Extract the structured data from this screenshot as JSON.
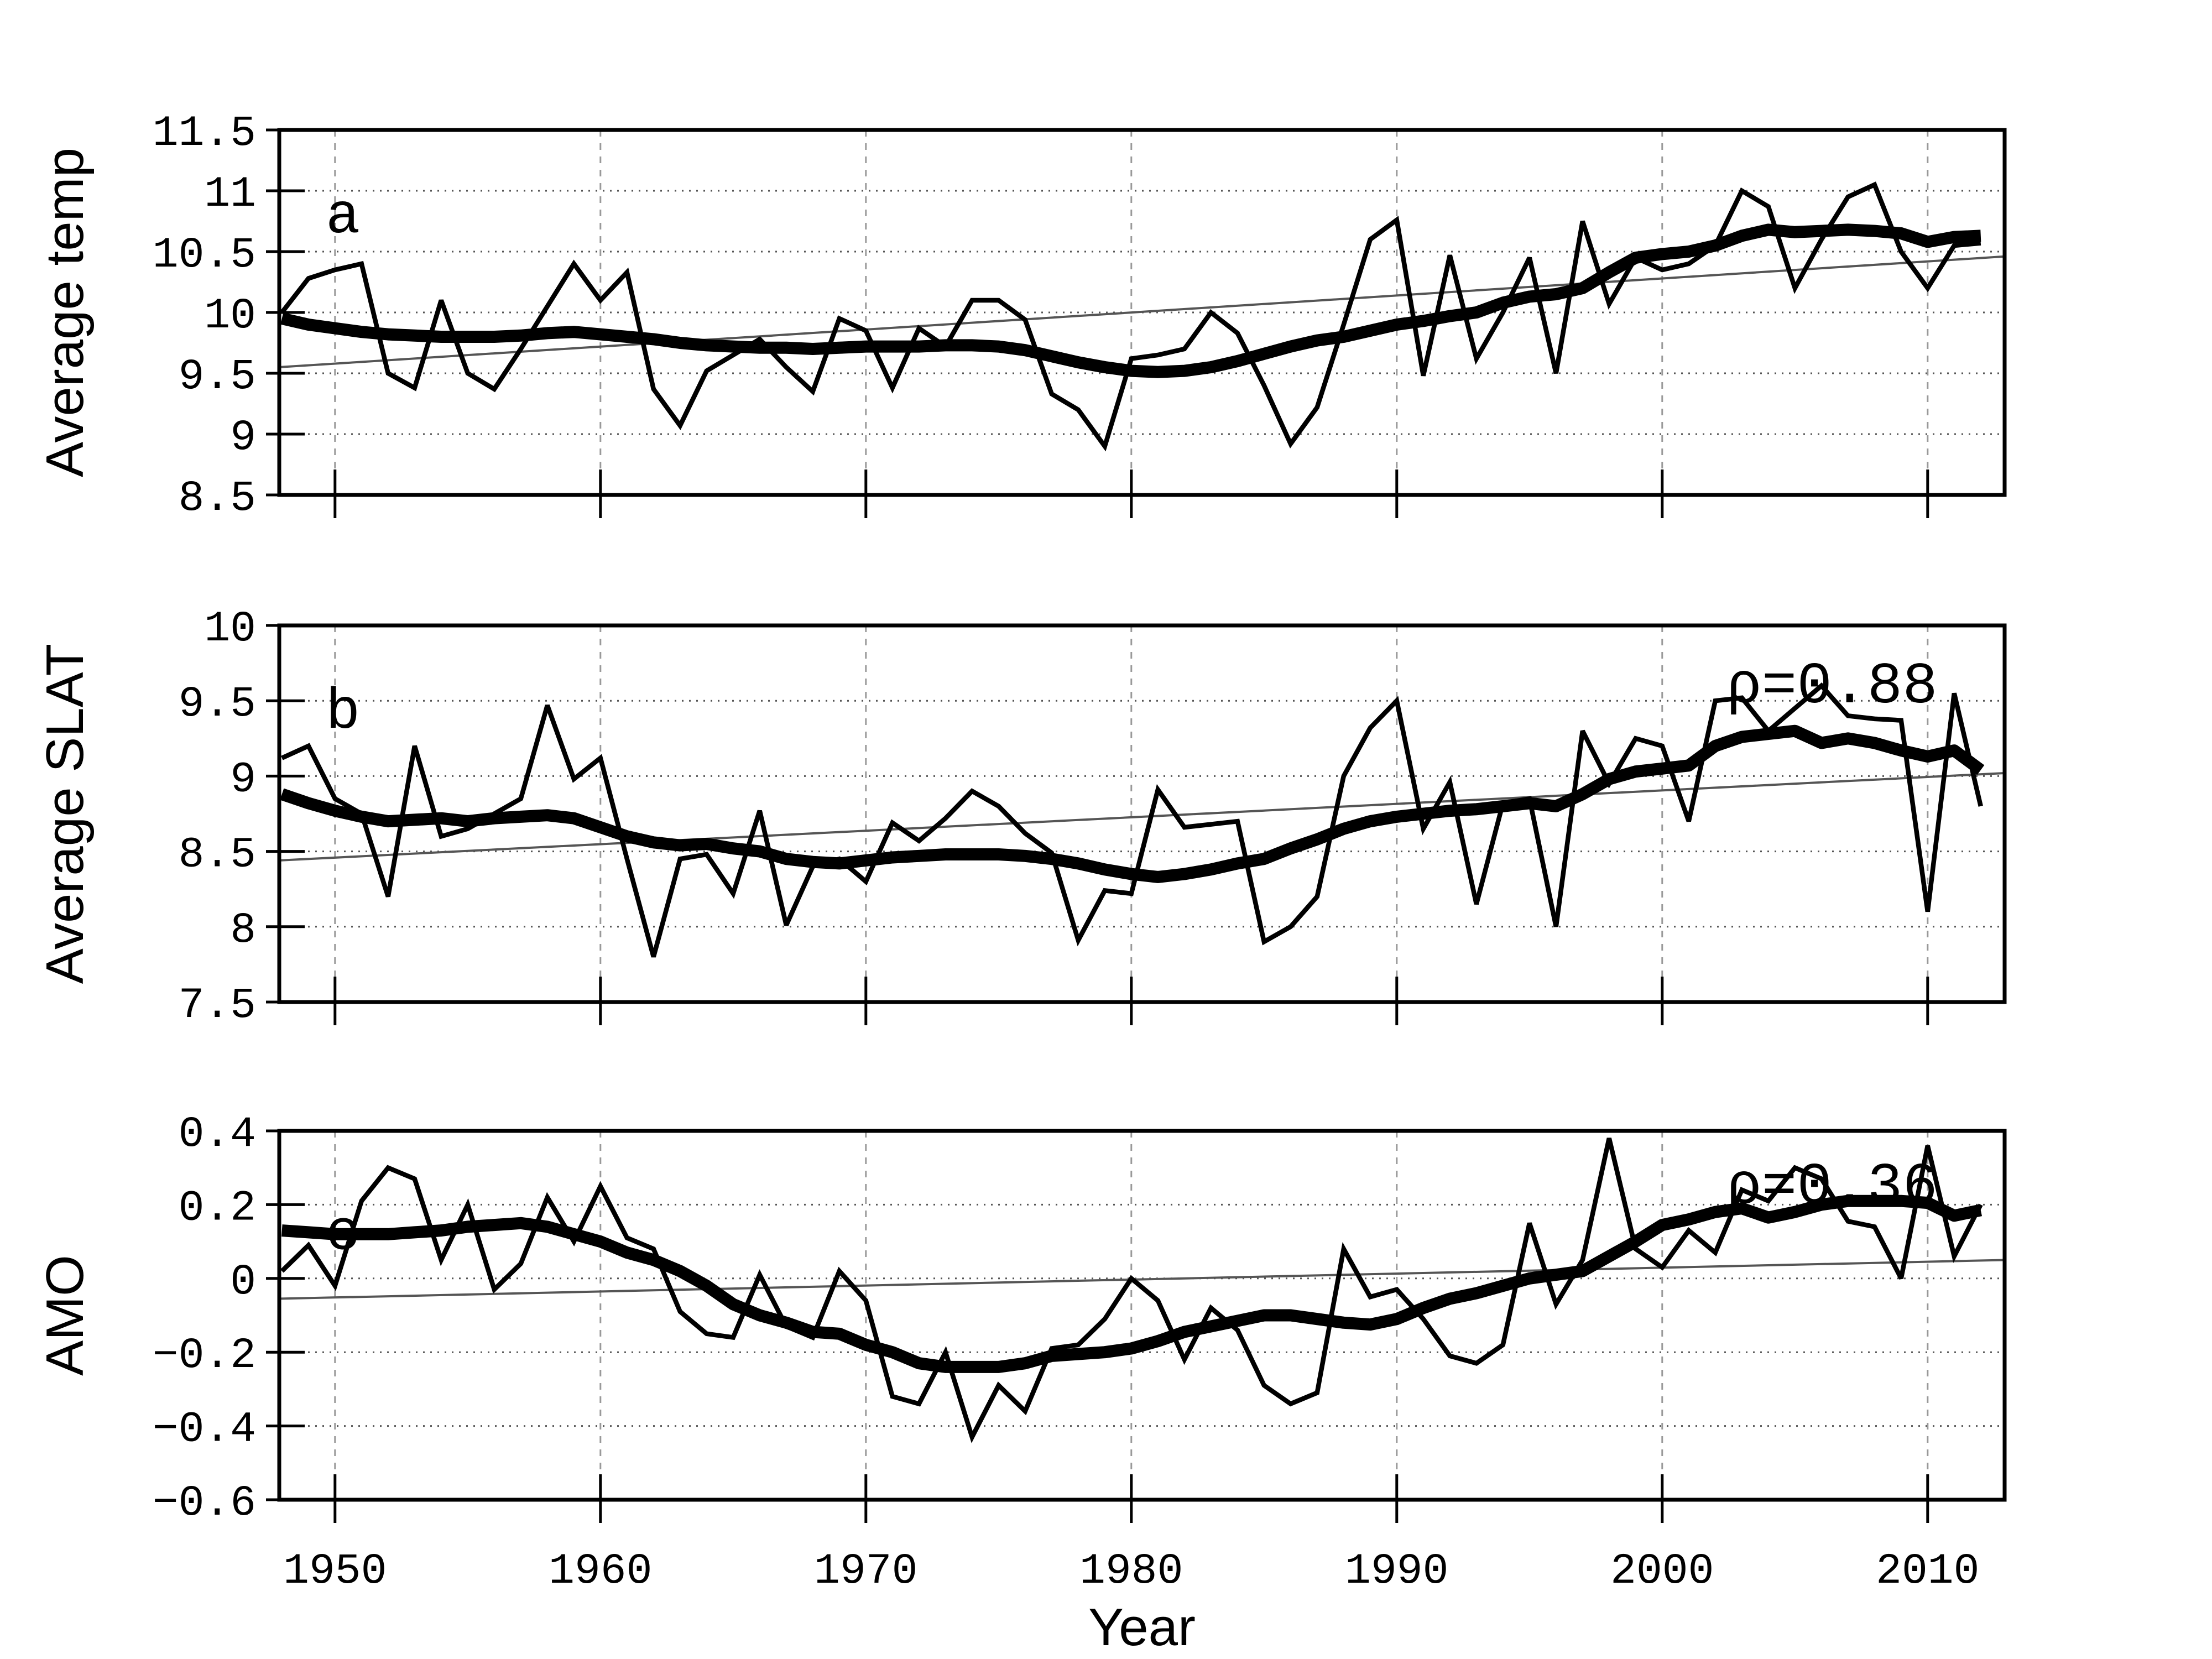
{
  "figure": {
    "xlabel": "Year",
    "x_ticks": [
      1950,
      1960,
      1970,
      1980,
      1990,
      2000,
      2010
    ],
    "xlim": [
      1947.9,
      2012.9
    ],
    "years_start": 1948,
    "colors": {
      "line": "#000000",
      "trend": "#555555",
      "grid_h": "#555555",
      "grid_v": "#999999",
      "frame": "#000000",
      "background": "#ffffff"
    }
  },
  "chart_data": [
    {
      "type": "line",
      "panel_letter": "a",
      "letter_pos": {
        "year": 1950.3,
        "value": 10.66
      },
      "ylabel": "Average temp",
      "ylim": [
        8.5,
        11.5
      ],
      "ytick_labels": [
        "11.5",
        "11",
        "10.5",
        "10",
        "9.5",
        "9",
        "8.5"
      ],
      "ytick_values": [
        11.5,
        11,
        10.5,
        10,
        9.5,
        9,
        8.5
      ],
      "grid_values": [
        11,
        10.5,
        10,
        9.5,
        9
      ],
      "annotation": null,
      "x": [
        1948,
        1949,
        1950,
        1951,
        1952,
        1953,
        1954,
        1955,
        1956,
        1957,
        1958,
        1959,
        1960,
        1961,
        1962,
        1963,
        1964,
        1965,
        1966,
        1967,
        1968,
        1969,
        1970,
        1971,
        1972,
        1973,
        1974,
        1975,
        1976,
        1977,
        1978,
        1979,
        1980,
        1981,
        1982,
        1983,
        1984,
        1985,
        1986,
        1987,
        1988,
        1989,
        1990,
        1991,
        1992,
        1993,
        1994,
        1995,
        1996,
        1997,
        1998,
        1999,
        2000,
        2001,
        2002,
        2003,
        2004,
        2005,
        2006,
        2007,
        2008,
        2009,
        2010,
        2011,
        2012
      ],
      "series": [
        {
          "name": "annual",
          "values": [
            10.0,
            10.28,
            10.35,
            10.4,
            9.5,
            9.38,
            10.1,
            9.5,
            9.37,
            9.7,
            10.05,
            10.4,
            10.1,
            10.33,
            9.37,
            9.07,
            9.52,
            9.65,
            9.78,
            9.55,
            9.35,
            9.95,
            9.85,
            9.38,
            9.87,
            9.72,
            10.1,
            10.1,
            9.94,
            9.33,
            9.2,
            8.9,
            9.62,
            9.65,
            9.7,
            10.0,
            9.83,
            9.4,
            8.92,
            9.22,
            9.9,
            10.6,
            10.76,
            9.48,
            10.47,
            9.62,
            10.0,
            10.45,
            9.5,
            10.75,
            10.07,
            10.45,
            10.35,
            10.4,
            10.55,
            11.0,
            10.87,
            10.2,
            10.6,
            10.95,
            11.05,
            10.5,
            10.2,
            10.55,
            10.57
          ]
        },
        {
          "name": "smoothed",
          "values": [
            9.95,
            9.9,
            9.87,
            9.84,
            9.82,
            9.81,
            9.8,
            9.8,
            9.8,
            9.81,
            9.83,
            9.84,
            9.82,
            9.8,
            9.78,
            9.75,
            9.73,
            9.72,
            9.71,
            9.71,
            9.7,
            9.71,
            9.72,
            9.72,
            9.72,
            9.73,
            9.73,
            9.72,
            9.69,
            9.64,
            9.59,
            9.55,
            9.52,
            9.51,
            9.52,
            9.55,
            9.6,
            9.66,
            9.72,
            9.77,
            9.8,
            9.85,
            9.9,
            9.93,
            9.97,
            10.0,
            10.08,
            10.13,
            10.15,
            10.2,
            10.33,
            10.45,
            10.48,
            10.5,
            10.55,
            10.63,
            10.68,
            10.66,
            10.67,
            10.68,
            10.67,
            10.65,
            10.58,
            10.62,
            10.63
          ]
        }
      ],
      "trend": {
        "start": {
          "year": 1947.9,
          "value": 9.55
        },
        "end": {
          "year": 2012.9,
          "value": 10.46
        }
      }
    },
    {
      "type": "line",
      "panel_letter": "b",
      "letter_pos": {
        "year": 1950.3,
        "value": 9.32
      },
      "ylabel": "Average SLAT",
      "ylim": [
        7.5,
        10
      ],
      "ytick_labels": [
        "10",
        "9.5",
        "9",
        "8.5",
        "8",
        "7.5"
      ],
      "ytick_values": [
        10,
        9.5,
        9,
        8.5,
        8,
        7.5
      ],
      "grid_values": [
        9.5,
        9,
        8.5,
        8
      ],
      "annotation": {
        "text": "ρ=0.88",
        "year": 2006.4,
        "value": 9.49
      },
      "x": [
        1948,
        1949,
        1950,
        1951,
        1952,
        1953,
        1954,
        1955,
        1956,
        1957,
        1958,
        1959,
        1960,
        1961,
        1962,
        1963,
        1964,
        1965,
        1966,
        1967,
        1968,
        1969,
        1970,
        1971,
        1972,
        1973,
        1974,
        1975,
        1976,
        1977,
        1978,
        1979,
        1980,
        1981,
        1982,
        1983,
        1984,
        1985,
        1986,
        1987,
        1988,
        1989,
        1990,
        1991,
        1992,
        1993,
        1994,
        1995,
        1996,
        1997,
        1998,
        1999,
        2000,
        2001,
        2002,
        2003,
        2004,
        2005,
        2006,
        2007,
        2008,
        2009,
        2010,
        2011,
        2012
      ],
      "series": [
        {
          "name": "annual",
          "values": [
            9.12,
            9.2,
            8.85,
            8.75,
            8.2,
            9.2,
            8.6,
            8.65,
            8.75,
            8.85,
            9.47,
            8.98,
            9.12,
            8.45,
            7.8,
            8.45,
            8.48,
            8.22,
            8.77,
            8.01,
            8.4,
            8.45,
            8.3,
            8.69,
            8.57,
            8.72,
            8.9,
            8.8,
            8.62,
            8.49,
            7.91,
            8.24,
            8.22,
            8.91,
            8.66,
            8.68,
            8.7,
            7.9,
            8.0,
            8.2,
            9.0,
            9.32,
            9.5,
            8.65,
            8.96,
            8.15,
            8.82,
            8.85,
            8.0,
            9.3,
            8.95,
            9.25,
            9.2,
            8.7,
            9.5,
            9.52,
            9.3,
            9.45,
            9.6,
            9.4,
            9.38,
            9.37,
            8.1,
            9.55,
            8.8
          ]
        },
        {
          "name": "smoothed",
          "values": [
            8.88,
            8.82,
            8.77,
            8.73,
            8.7,
            8.71,
            8.72,
            8.7,
            8.72,
            8.73,
            8.74,
            8.72,
            8.66,
            8.6,
            8.56,
            8.54,
            8.55,
            8.52,
            8.5,
            8.45,
            8.43,
            8.42,
            8.44,
            8.46,
            8.47,
            8.48,
            8.48,
            8.48,
            8.47,
            8.45,
            8.42,
            8.38,
            8.35,
            8.33,
            8.35,
            8.38,
            8.42,
            8.45,
            8.52,
            8.58,
            8.65,
            8.7,
            8.73,
            8.75,
            8.77,
            8.78,
            8.8,
            8.82,
            8.8,
            8.88,
            8.98,
            9.03,
            9.05,
            9.07,
            9.2,
            9.26,
            9.28,
            9.3,
            9.22,
            9.25,
            9.22,
            9.17,
            9.13,
            9.17,
            9.04
          ]
        }
      ],
      "trend": {
        "start": {
          "year": 1947.9,
          "value": 8.44
        },
        "end": {
          "year": 2012.9,
          "value": 9.02
        }
      }
    },
    {
      "type": "line",
      "panel_letter": "c",
      "letter_pos": {
        "year": 1950.3,
        "value": 0.08
      },
      "ylabel": "AMO",
      "ylim": [
        -0.6,
        0.4
      ],
      "ytick_labels": [
        "0.4",
        "0.2",
        "0",
        "−0.2",
        "−0.4",
        "−0.6"
      ],
      "ytick_values": [
        0.4,
        0.2,
        0,
        -0.2,
        -0.4,
        -0.6
      ],
      "grid_values": [
        0.2,
        0,
        -0.2,
        -0.4
      ],
      "annotation": {
        "text": "ρ=0.36",
        "year": 2006.4,
        "value": 0.205
      },
      "x": [
        1948,
        1949,
        1950,
        1951,
        1952,
        1953,
        1954,
        1955,
        1956,
        1957,
        1958,
        1959,
        1960,
        1961,
        1962,
        1963,
        1964,
        1965,
        1966,
        1967,
        1968,
        1969,
        1970,
        1971,
        1972,
        1973,
        1974,
        1975,
        1976,
        1977,
        1978,
        1979,
        1980,
        1981,
        1982,
        1983,
        1984,
        1985,
        1986,
        1987,
        1988,
        1989,
        1990,
        1991,
        1992,
        1993,
        1994,
        1995,
        1996,
        1997,
        1998,
        1999,
        2000,
        2001,
        2002,
        2003,
        2004,
        2005,
        2006,
        2007,
        2008,
        2009,
        2010,
        2011,
        2012
      ],
      "series": [
        {
          "name": "annual",
          "values": [
            0.02,
            0.09,
            -0.02,
            0.21,
            0.3,
            0.27,
            0.05,
            0.2,
            -0.03,
            0.04,
            0.22,
            0.1,
            0.25,
            0.11,
            0.08,
            -0.09,
            -0.15,
            -0.16,
            0.01,
            -0.13,
            -0.16,
            0.02,
            -0.06,
            -0.32,
            -0.34,
            -0.2,
            -0.43,
            -0.29,
            -0.36,
            -0.19,
            -0.18,
            -0.11,
            0.0,
            -0.06,
            -0.22,
            -0.08,
            -0.14,
            -0.29,
            -0.34,
            -0.31,
            0.08,
            -0.05,
            -0.03,
            -0.11,
            -0.21,
            -0.23,
            -0.18,
            0.15,
            -0.07,
            0.05,
            0.38,
            0.08,
            0.03,
            0.13,
            0.07,
            0.24,
            0.21,
            0.3,
            0.27,
            0.155,
            0.14,
            0.0,
            0.36,
            0.06,
            0.2
          ]
        },
        {
          "name": "smoothed",
          "values": [
            0.13,
            0.125,
            0.12,
            0.12,
            0.12,
            0.125,
            0.13,
            0.14,
            0.145,
            0.15,
            0.14,
            0.12,
            0.1,
            0.07,
            0.05,
            0.02,
            -0.02,
            -0.07,
            -0.1,
            -0.12,
            -0.145,
            -0.15,
            -0.18,
            -0.2,
            -0.23,
            -0.24,
            -0.24,
            -0.24,
            -0.23,
            -0.21,
            -0.205,
            -0.2,
            -0.19,
            -0.17,
            -0.145,
            -0.13,
            -0.115,
            -0.1,
            -0.1,
            -0.11,
            -0.12,
            -0.125,
            -0.11,
            -0.08,
            -0.055,
            -0.04,
            -0.02,
            0.0,
            0.01,
            0.02,
            0.06,
            0.1,
            0.145,
            0.16,
            0.18,
            0.19,
            0.165,
            0.18,
            0.2,
            0.21,
            0.21,
            0.21,
            0.205,
            0.17,
            0.185
          ]
        }
      ],
      "trend": {
        "start": {
          "year": 1947.9,
          "value": -0.055
        },
        "end": {
          "year": 2012.9,
          "value": 0.05
        }
      }
    }
  ]
}
